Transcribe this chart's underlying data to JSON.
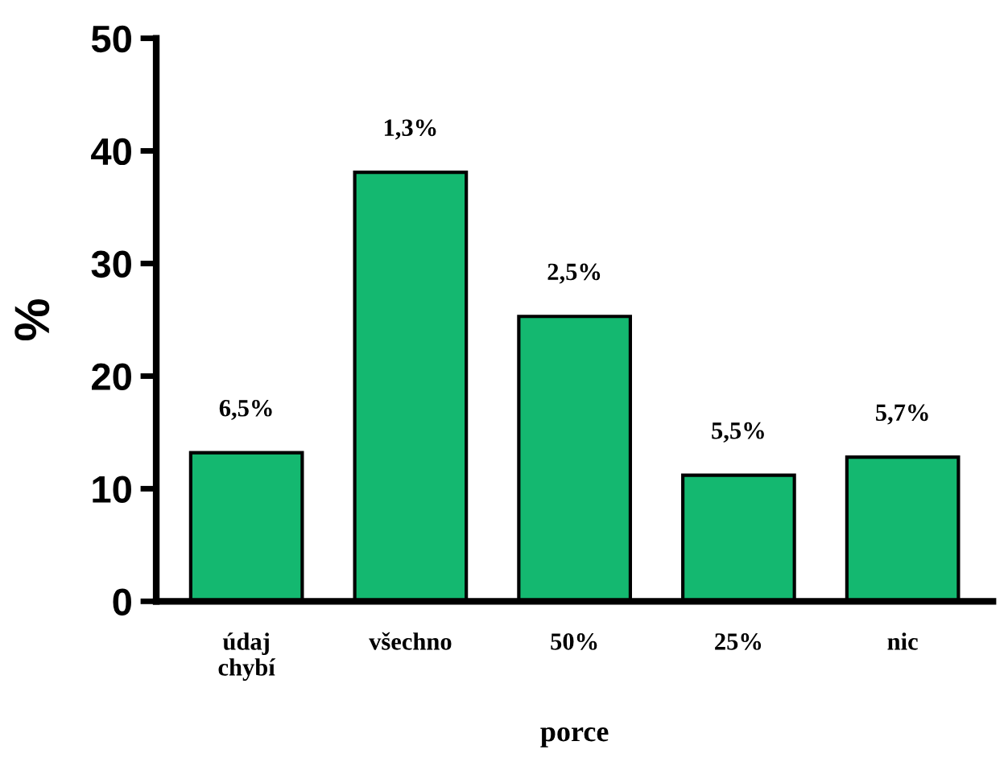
{
  "chart_data": {
    "type": "bar",
    "xlabel": "porce",
    "ylabel": "%",
    "categories": [
      "údaj\nchybí",
      "všechno",
      "50%",
      "25%",
      "nic"
    ],
    "values": [
      13.2,
      38.1,
      25.3,
      11.2,
      12.8
    ],
    "annotations": [
      {
        "text": "6,5%",
        "x": "údaj\nchybí",
        "y": 13.2
      },
      {
        "text": "1,3%",
        "x": "všechno",
        "y": 38.1
      },
      {
        "text": "2,5%",
        "x": "50%",
        "y": 25.3
      },
      {
        "text": "5,5%",
        "x": "25%",
        "y": 11.2
      },
      {
        "text": "5,7%",
        "x": "nic",
        "y": 12.8
      }
    ],
    "color": "#14b870",
    "ylim": [
      0,
      50
    ],
    "yticks": [
      0,
      10,
      20,
      30,
      40,
      50
    ],
    "grid": false
  }
}
